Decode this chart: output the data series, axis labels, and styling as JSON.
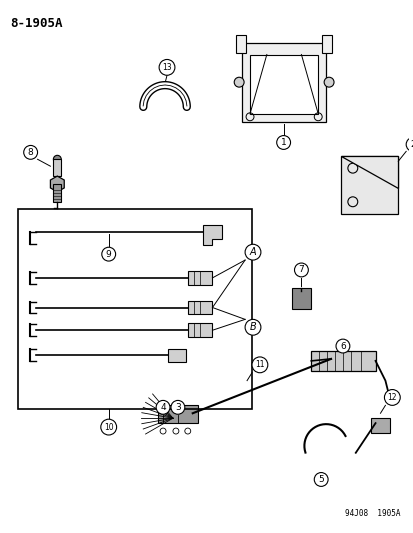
{
  "title": "8-1905A",
  "footer": "94J08  1905A",
  "bg_color": "#ffffff",
  "fg_color": "#000000",
  "figsize": [
    4.14,
    5.33
  ],
  "dpi": 100
}
